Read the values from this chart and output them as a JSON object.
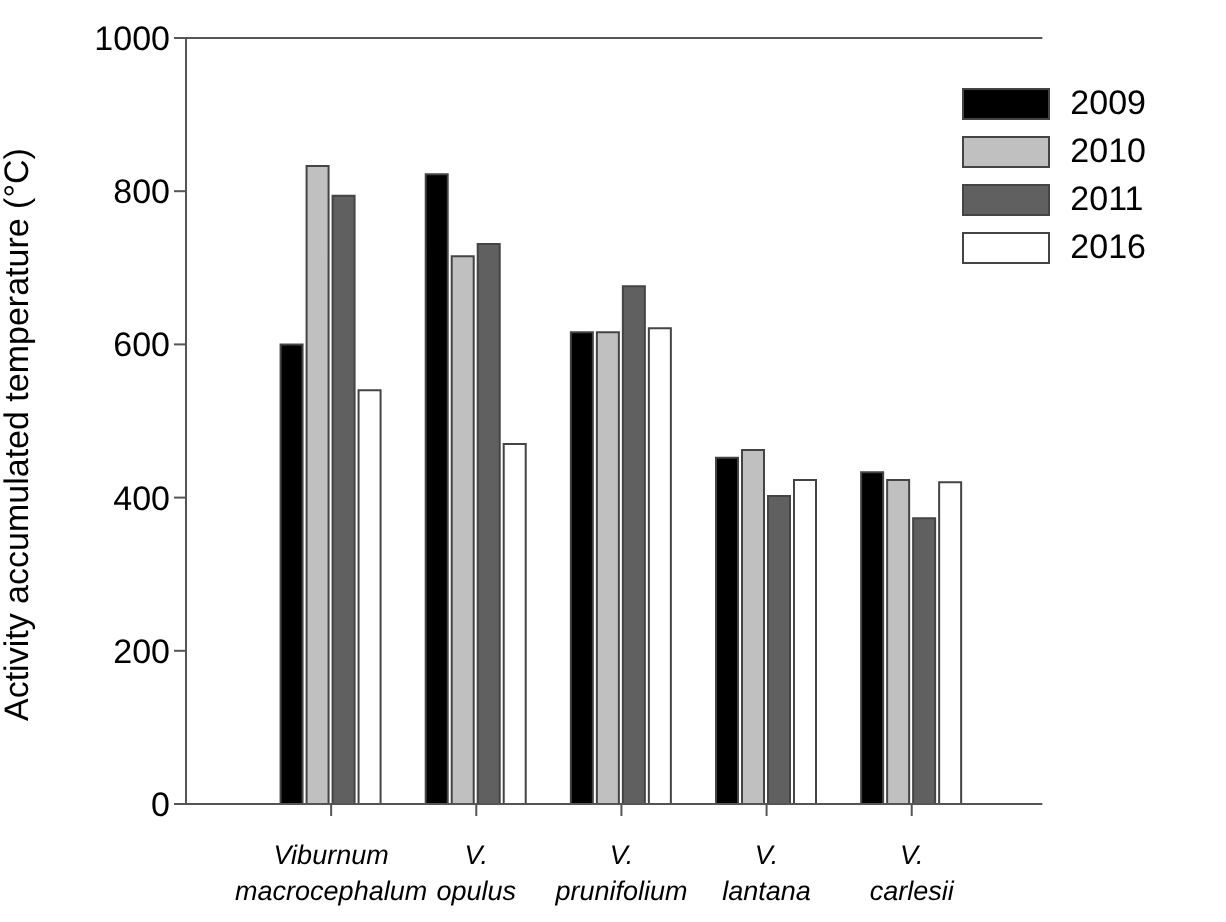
{
  "chart_data": {
    "type": "bar",
    "ylabel": "Activity accumulated temperature (°C)",
    "categories": [
      "Viburnum\nmacrocephalum",
      "V.\nopulus",
      "V.\nprunifolium",
      "V.\nlantana",
      "V.\ncarlesii"
    ],
    "series": [
      {
        "name": "2009",
        "color": "#000000",
        "values": [
          600,
          822,
          616,
          452,
          433
        ]
      },
      {
        "name": "2010",
        "color": "#c0c0c0",
        "values": [
          833,
          715,
          616,
          462,
          423
        ]
      },
      {
        "name": "2011",
        "color": "#606060",
        "values": [
          794,
          731,
          676,
          402,
          373
        ]
      },
      {
        "name": "2016",
        "color": "#ffffff",
        "values": [
          540,
          470,
          621,
          423,
          420
        ]
      }
    ],
    "ylim": [
      0,
      1000
    ],
    "yticks": [
      0,
      200,
      400,
      600,
      800,
      1000
    ],
    "grid": false,
    "legend": "top right"
  }
}
